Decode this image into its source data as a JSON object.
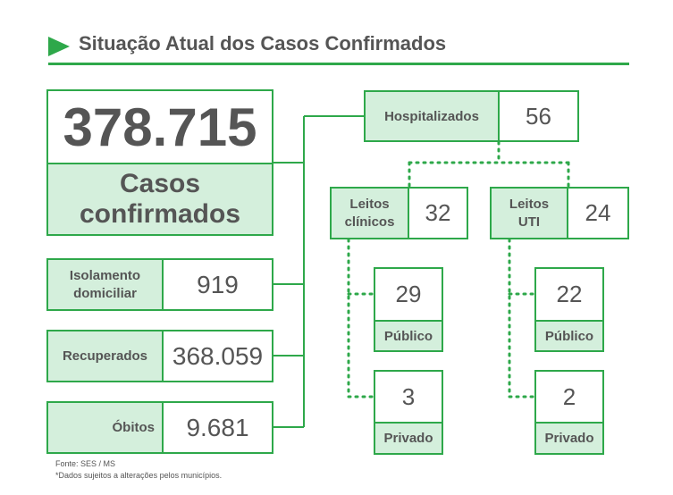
{
  "title": "Situação Atual dos Casos Confirmados",
  "total": {
    "value": "378.715",
    "label_line1": "Casos",
    "label_line2": "confirmados"
  },
  "isolamento": {
    "label_line1": "Isolamento",
    "label_line2": "domiciliar",
    "value": "919"
  },
  "recuperados": {
    "label": "Recuperados",
    "value": "368.059"
  },
  "obitos": {
    "label": "Óbitos",
    "value": "9.681"
  },
  "hospitalizados": {
    "label": "Hospitalizados",
    "value": "56"
  },
  "leitos_clinicos": {
    "label_line1": "Leitos",
    "label_line2": "clínicos",
    "value": "32",
    "publico": {
      "value": "29",
      "label": "Público"
    },
    "privado": {
      "value": "3",
      "label": "Privado"
    }
  },
  "leitos_uti": {
    "label_line1": "Leitos",
    "label_line2": "UTI",
    "value": "24",
    "publico": {
      "value": "22",
      "label": "Público"
    },
    "privado": {
      "value": "2",
      "label": "Privado"
    }
  },
  "footer": {
    "source": "Fonte: SES / MS",
    "note": "*Dados sujeitos a alterações pelos municípios."
  },
  "colors": {
    "accent": "#2ea84a",
    "fill": "#d4efdc",
    "text": "#555555"
  }
}
